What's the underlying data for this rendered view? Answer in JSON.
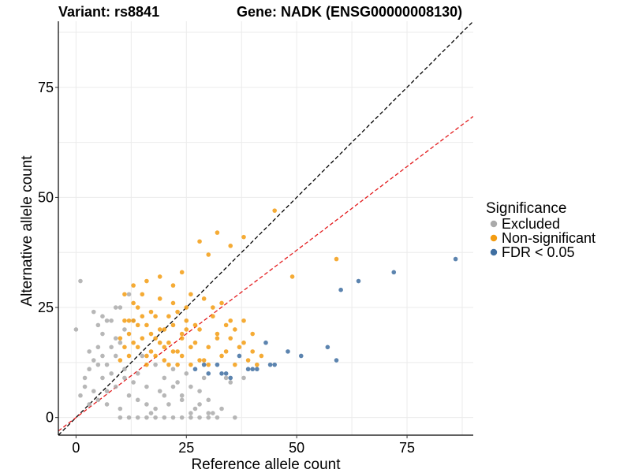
{
  "chart_data": {
    "type": "scatter",
    "title_left": "Variant: rs8841",
    "title_right": "Gene: NADK (ENSG00000008130)",
    "xlabel": "Reference allele count",
    "ylabel": "Alternative allele count",
    "xlim": [
      -4,
      90
    ],
    "ylim": [
      -4,
      90
    ],
    "x_ticks": [
      0,
      25,
      50,
      75
    ],
    "y_ticks": [
      0,
      25,
      50,
      75
    ],
    "grid": true,
    "legend": {
      "title": "Significance",
      "placement": "right",
      "entries": [
        {
          "label": "Excluded",
          "color": "#aaaaaa"
        },
        {
          "label": "Non-significant",
          "color": "#f39c12"
        },
        {
          "label": "FDR < 0.05",
          "color": "#3f6fa1"
        }
      ]
    },
    "reference_lines": [
      {
        "style": "dashed",
        "color": "#000000",
        "intercept": 0,
        "slope": 1.0
      },
      {
        "style": "dashed",
        "color": "#e31a1c",
        "intercept": 0,
        "slope": 0.76
      }
    ],
    "series": [
      {
        "name": "Excluded",
        "color": "#aaaaaa",
        "points": [
          [
            0,
            20
          ],
          [
            1,
            31
          ],
          [
            2,
            7
          ],
          [
            3,
            15
          ],
          [
            4,
            6
          ],
          [
            5,
            12
          ],
          [
            6,
            9
          ],
          [
            7,
            3
          ],
          [
            8,
            10
          ],
          [
            9,
            18
          ],
          [
            10,
            2
          ],
          [
            11,
            11
          ],
          [
            12,
            5
          ],
          [
            13,
            8
          ],
          [
            14,
            4
          ],
          [
            15,
            14
          ],
          [
            16,
            7
          ],
          [
            17,
            1
          ],
          [
            18,
            12
          ],
          [
            19,
            6
          ],
          [
            20,
            9
          ],
          [
            21,
            3
          ],
          [
            22,
            11
          ],
          [
            23,
            8
          ],
          [
            24,
            5
          ],
          [
            25,
            10
          ],
          [
            26,
            7
          ],
          [
            27,
            2
          ],
          [
            28,
            6
          ],
          [
            29,
            9
          ],
          [
            30,
            4
          ],
          [
            31,
            1
          ],
          [
            32,
            0
          ],
          [
            33,
            2
          ],
          [
            34,
            9
          ],
          [
            35,
            8
          ],
          [
            36,
            0
          ],
          [
            38,
            9
          ],
          [
            3,
            11
          ],
          [
            5,
            16
          ],
          [
            6,
            19
          ],
          [
            8,
            22
          ],
          [
            10,
            25
          ],
          [
            12,
            28
          ],
          [
            13,
            22
          ],
          [
            9,
            25
          ],
          [
            4,
            13
          ],
          [
            2,
            9
          ],
          [
            1,
            5
          ],
          [
            3,
            3
          ],
          [
            5,
            4
          ],
          [
            7,
            6
          ],
          [
            9,
            7
          ],
          [
            11,
            9
          ],
          [
            14,
            10
          ],
          [
            16,
            3
          ],
          [
            18,
            2
          ],
          [
            20,
            5
          ],
          [
            22,
            7
          ],
          [
            24,
            4
          ],
          [
            26,
            1
          ],
          [
            28,
            3
          ],
          [
            30,
            0
          ],
          [
            10,
            0
          ],
          [
            12,
            0
          ],
          [
            14,
            0
          ],
          [
            16,
            0
          ],
          [
            18,
            0
          ],
          [
            20,
            0
          ],
          [
            22,
            0
          ],
          [
            24,
            0
          ],
          [
            26,
            0
          ],
          [
            28,
            0
          ],
          [
            30,
            1
          ],
          [
            6,
            14
          ],
          [
            7,
            12
          ],
          [
            8,
            16
          ],
          [
            9,
            14
          ],
          [
            10,
            17
          ],
          [
            11,
            20
          ],
          [
            7,
            22
          ],
          [
            5,
            21
          ],
          [
            4,
            24
          ],
          [
            6,
            23
          ]
        ]
      },
      {
        "name": "Non-significant",
        "color": "#f39c12",
        "points": [
          [
            10,
            13
          ],
          [
            11,
            16
          ],
          [
            12,
            19
          ],
          [
            13,
            22
          ],
          [
            14,
            25
          ],
          [
            15,
            18
          ],
          [
            16,
            21
          ],
          [
            17,
            24
          ],
          [
            18,
            14
          ],
          [
            19,
            17
          ],
          [
            20,
            20
          ],
          [
            21,
            23
          ],
          [
            22,
            26
          ],
          [
            23,
            15
          ],
          [
            24,
            19
          ],
          [
            25,
            22
          ],
          [
            26,
            12
          ],
          [
            27,
            17
          ],
          [
            28,
            20
          ],
          [
            29,
            13
          ],
          [
            30,
            16
          ],
          [
            31,
            23
          ],
          [
            32,
            19
          ],
          [
            33,
            14
          ],
          [
            34,
            21
          ],
          [
            35,
            18
          ],
          [
            36,
            12
          ],
          [
            37,
            16
          ],
          [
            38,
            22
          ],
          [
            39,
            13
          ],
          [
            40,
            15
          ],
          [
            41,
            12
          ],
          [
            11,
            28
          ],
          [
            12,
            22
          ],
          [
            13,
            17
          ],
          [
            14,
            21
          ],
          [
            15,
            23
          ],
          [
            16,
            14
          ],
          [
            17,
            19
          ],
          [
            18,
            23
          ],
          [
            19,
            27
          ],
          [
            20,
            16
          ],
          [
            21,
            12
          ],
          [
            22,
            15
          ],
          [
            23,
            24
          ],
          [
            24,
            18
          ],
          [
            25,
            20
          ],
          [
            26,
            28
          ],
          [
            28,
            40
          ],
          [
            30,
            37
          ],
          [
            32,
            42
          ],
          [
            35,
            39
          ],
          [
            38,
            41
          ],
          [
            45,
            47
          ],
          [
            59,
            36
          ],
          [
            49,
            32
          ],
          [
            24,
            33
          ],
          [
            22,
            30
          ],
          [
            19,
            32
          ],
          [
            16,
            31
          ],
          [
            13,
            30
          ],
          [
            10,
            18
          ],
          [
            12,
            14
          ],
          [
            14,
            16
          ],
          [
            16,
            12
          ],
          [
            18,
            18
          ],
          [
            20,
            13
          ],
          [
            22,
            21
          ],
          [
            24,
            14
          ],
          [
            26,
            16
          ],
          [
            28,
            13
          ],
          [
            30,
            12
          ],
          [
            32,
            18
          ],
          [
            34,
            15
          ],
          [
            36,
            20
          ],
          [
            38,
            17
          ],
          [
            40,
            19
          ],
          [
            42,
            14
          ],
          [
            11,
            22
          ],
          [
            13,
            26
          ],
          [
            15,
            28
          ],
          [
            17,
            15
          ],
          [
            19,
            20
          ],
          [
            21,
            17
          ],
          [
            23,
            12
          ],
          [
            25,
            25
          ],
          [
            27,
            21
          ],
          [
            29,
            27
          ],
          [
            31,
            25
          ],
          [
            33,
            26
          ],
          [
            35,
            22
          ]
        ]
      },
      {
        "name": "FDR < 0.05",
        "color": "#3f6fa1",
        "points": [
          [
            86,
            36
          ],
          [
            72,
            33
          ],
          [
            64,
            31
          ],
          [
            60,
            29
          ],
          [
            59,
            13
          ],
          [
            57,
            16
          ],
          [
            51,
            14
          ],
          [
            48,
            15
          ],
          [
            45,
            12
          ],
          [
            43,
            17
          ],
          [
            41,
            11
          ],
          [
            39,
            11
          ],
          [
            37,
            14
          ],
          [
            35,
            9
          ],
          [
            33,
            10
          ],
          [
            32,
            12
          ],
          [
            30,
            10
          ],
          [
            29,
            12
          ],
          [
            27,
            11
          ],
          [
            44,
            12
          ],
          [
            40,
            11
          ],
          [
            34,
            10
          ]
        ]
      }
    ]
  }
}
